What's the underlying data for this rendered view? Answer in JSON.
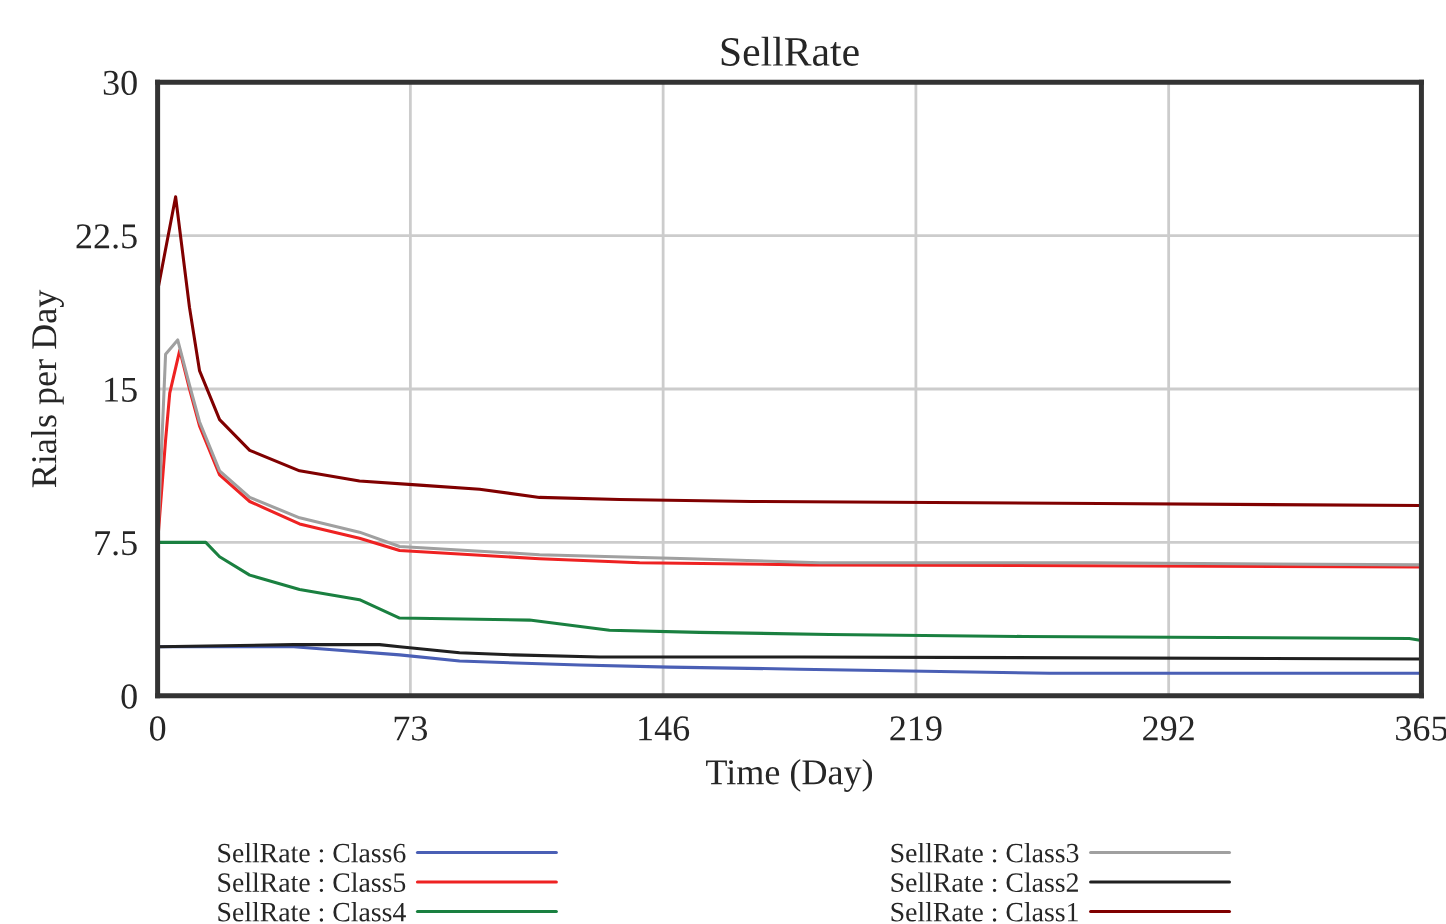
{
  "chart_data": {
    "type": "line",
    "title": "SellRate",
    "xlabel": "Time (Day)",
    "ylabel": "Rials per Day",
    "xlim": [
      0,
      365
    ],
    "xticks": [
      0,
      73,
      146,
      219,
      292,
      365
    ],
    "ylim": [
      0,
      30
    ],
    "yticks": [
      0,
      7.5,
      15,
      22.5,
      30
    ],
    "grid": true,
    "legend": "bottom",
    "series": [
      {
        "name": "SellRate : Class6",
        "color": "#4a5fb5",
        "x": [
          0,
          39.3,
          46.8,
          69.9,
          87.2,
          121.9,
          147.8,
          185.4,
          257.6,
          365
        ],
        "values": [
          2.4,
          2.4,
          2.3,
          2.0,
          1.7,
          1.5,
          1.4,
          1.3,
          1.1,
          1.1
        ]
      },
      {
        "name": "SellRate : Class5",
        "color": "#ee2222",
        "x": [
          0,
          2.3,
          3.5,
          6.4,
          9.2,
          12.1,
          17.9,
          26.6,
          41,
          58.3,
          69.9,
          110.3,
          139.2,
          188.3,
          365
        ],
        "values": [
          7.5,
          12.5,
          14.8,
          16.9,
          15,
          13.2,
          10.8,
          9.5,
          8.4,
          7.7,
          7.1,
          6.7,
          6.5,
          6.4,
          6.3
        ]
      },
      {
        "name": "SellRate : Class4",
        "color": "#1a8040",
        "x": [
          0,
          13.9,
          17.9,
          26.6,
          41,
          58.3,
          69.9,
          107.4,
          130.5,
          156.5,
          194,
          250,
          361.5,
          365
        ],
        "values": [
          7.5,
          7.5,
          6.8,
          5.9,
          5.2,
          4.7,
          3.8,
          3.7,
          3.2,
          3.1,
          3.0,
          2.9,
          2.8,
          2.7
        ]
      },
      {
        "name": "SellRate : Class3",
        "color": "#a0a0a0",
        "x": [
          0,
          2.3,
          5.8,
          9.2,
          12.1,
          17.9,
          26.6,
          41,
          58.3,
          69.9,
          110.3,
          153.6,
          191.2,
          270.3,
          365
        ],
        "values": [
          7.5,
          16.7,
          17.4,
          15.2,
          13.4,
          11.0,
          9.7,
          8.7,
          8.0,
          7.3,
          6.9,
          6.7,
          6.5,
          6.5,
          6.4
        ]
      },
      {
        "name": "SellRate : Class2",
        "color": "#202020",
        "x": [
          0,
          39.3,
          64.1,
          69.9,
          87.2,
          102.8,
          127.6,
          185.4,
          365
        ],
        "values": [
          2.4,
          2.5,
          2.5,
          2.4,
          2.1,
          2.0,
          1.9,
          1.9,
          1.8
        ]
      },
      {
        "name": "SellRate : Class1",
        "color": "#800000",
        "x": [
          0,
          5.2,
          9.2,
          12.1,
          17.9,
          26.6,
          41,
          58.3,
          75.7,
          93,
          110.3,
          133.4,
          171.5,
          272,
          365
        ],
        "values": [
          19.8,
          24.4,
          19.0,
          15.9,
          13.5,
          12.0,
          11.0,
          10.5,
          10.3,
          10.1,
          9.7,
          9.6,
          9.5,
          9.4,
          9.3
        ]
      }
    ]
  }
}
